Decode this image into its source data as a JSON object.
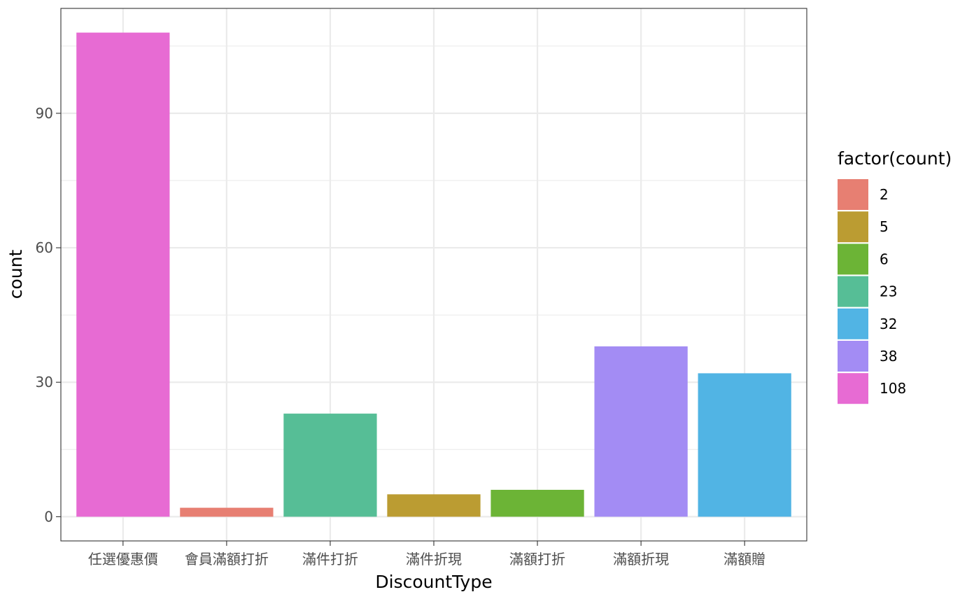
{
  "chart_data": {
    "type": "bar",
    "title": "",
    "xlabel": "DiscountType",
    "ylabel": "count",
    "categories": [
      "任選優惠價",
      "會員滿額打折",
      "滿件打折",
      "滿件折現",
      "滿額打折",
      "滿額折現",
      "滿額贈"
    ],
    "values": [
      108,
      2,
      23,
      5,
      6,
      38,
      32
    ],
    "bar_colors": [
      "#E76BD3",
      "#E77F72",
      "#56BE96",
      "#BB9C32",
      "#6CB436",
      "#A38CF4",
      "#51B4E4"
    ],
    "ylim": [
      -5.4,
      113.4
    ],
    "y_ticks": [
      0,
      30,
      60,
      90
    ],
    "y_minor_ticks": [
      15,
      45,
      75,
      105
    ],
    "grid": true,
    "legend": {
      "title": "factor(count)",
      "position": "right",
      "entries": [
        {
          "label": "2",
          "color": "#E77F72"
        },
        {
          "label": "5",
          "color": "#BB9C32"
        },
        {
          "label": "6",
          "color": "#6CB436"
        },
        {
          "label": "23",
          "color": "#56BE96"
        },
        {
          "label": "32",
          "color": "#51B4E4"
        },
        {
          "label": "38",
          "color": "#A38CF4"
        },
        {
          "label": "108",
          "color": "#E76BD3"
        }
      ]
    }
  }
}
